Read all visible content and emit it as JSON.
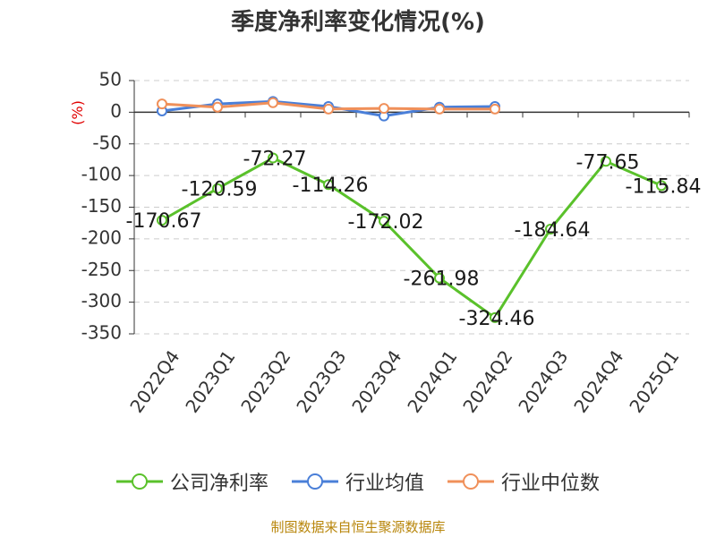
{
  "title": "季度净利率变化情况(%)",
  "footer": "制图数据来自恒生聚源数据库",
  "chart_data": {
    "type": "line",
    "categories": [
      "2022Q4",
      "2023Q1",
      "2023Q2",
      "2023Q3",
      "2023Q4",
      "2024Q1",
      "2024Q2",
      "2024Q3",
      "2024Q4",
      "2025Q1"
    ],
    "ylabel": "(%)",
    "ylim": [
      -350,
      50
    ],
    "yticks": [
      50,
      0,
      -50,
      -100,
      -150,
      -200,
      -250,
      -300,
      -350
    ],
    "grid": "horizontal dashed",
    "legend_position": "bottom",
    "series": [
      {
        "name": "公司净利率",
        "color": "#5ac12b",
        "values": [
          -170.67,
          -120.59,
          -72.27,
          -114.26,
          -172.02,
          -261.98,
          -324.46,
          -184.64,
          -77.65,
          -115.84
        ],
        "labels": [
          "-170.67",
          "-120.59",
          "-72.27",
          "-114.26",
          "-172.02",
          "-261.98",
          "-324.46",
          "-184.64",
          "-77.65",
          "-115.84"
        ]
      },
      {
        "name": "行业均值",
        "color": "#4a7fd8",
        "values": [
          2,
          13,
          17,
          9,
          -6,
          8,
          9,
          null,
          null,
          null
        ]
      },
      {
        "name": "行业中位数",
        "color": "#f0905a",
        "values": [
          13,
          8,
          15,
          5,
          6,
          5,
          5,
          null,
          null,
          null
        ]
      }
    ]
  }
}
